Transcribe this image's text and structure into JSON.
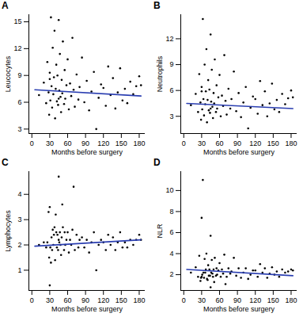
{
  "chart_data": [
    {
      "type": "scatter",
      "title": "A",
      "x_label": "Months before surgery",
      "y_label": "Leucocytes",
      "xlim": [
        -5,
        190
      ],
      "xticks": [
        0,
        30,
        60,
        90,
        120,
        150,
        180
      ],
      "ylim": [
        2.5,
        15.8
      ],
      "yticks": [
        3,
        6,
        9,
        12,
        15
      ],
      "series": [
        {
          "type": "scatter",
          "color": "#000000",
          "x": [
            12,
            20,
            24,
            26,
            28,
            29,
            30,
            31,
            32,
            33,
            34,
            35,
            36,
            37,
            38,
            39,
            40,
            41,
            42,
            43,
            44,
            45,
            46,
            47,
            48,
            49,
            50,
            51,
            52,
            54,
            55,
            56,
            58,
            60,
            62,
            64,
            66,
            68,
            70,
            72,
            75,
            78,
            80,
            84,
            88,
            92,
            96,
            100,
            104,
            108,
            112,
            116,
            120,
            124,
            128,
            132,
            136,
            140,
            144,
            148,
            152,
            156,
            160,
            165,
            170,
            175,
            180,
            183,
            30,
            45
          ],
          "values": [
            6.8,
            8.2,
            5.9,
            10.5,
            7.1,
            4.6,
            9.3,
            6.2,
            15.5,
            7.8,
            5.4,
            12.1,
            6.9,
            8.8,
            14.0,
            4.2,
            7.5,
            10.2,
            6.1,
            9.0,
            5.7,
            15.2,
            7.3,
            11.4,
            6.6,
            4.9,
            8.5,
            7.0,
            12.8,
            5.8,
            9.6,
            6.4,
            7.9,
            10.8,
            5.2,
            8.1,
            6.7,
            13.2,
            7.4,
            5.5,
            9.1,
            6.3,
            7.7,
            11.0,
            6.0,
            8.4,
            5.1,
            7.2,
            9.4,
            3.0,
            6.5,
            8.0,
            7.6,
            5.6,
            10.0,
            6.8,
            8.7,
            5.3,
            7.1,
            9.8,
            6.2,
            7.5,
            5.9,
            8.3,
            6.9,
            7.8,
            8.9,
            7.9,
            8.6,
            6.4
          ]
        },
        {
          "type": "line",
          "color": "#2a3eb1",
          "x": [
            5,
            183
          ],
          "values": [
            7.4,
            6.7
          ]
        }
      ]
    },
    {
      "type": "scatter",
      "title": "B",
      "x_label": "Months before surgery",
      "y_label": "Neutrophils",
      "xlim": [
        -5,
        190
      ],
      "xticks": [
        0,
        30,
        60,
        90,
        120,
        150,
        180
      ],
      "ylim": [
        1,
        14.8
      ],
      "yticks": [
        3,
        6,
        9,
        12
      ],
      "series": [
        {
          "type": "scatter",
          "color": "#000000",
          "x": [
            12,
            20,
            24,
            26,
            28,
            29,
            30,
            31,
            32,
            33,
            34,
            35,
            36,
            37,
            38,
            39,
            40,
            41,
            42,
            43,
            44,
            45,
            46,
            47,
            48,
            49,
            50,
            51,
            52,
            54,
            55,
            56,
            58,
            60,
            62,
            64,
            66,
            68,
            70,
            72,
            75,
            78,
            80,
            84,
            88,
            92,
            96,
            100,
            104,
            108,
            112,
            116,
            120,
            124,
            128,
            132,
            136,
            140,
            144,
            148,
            152,
            156,
            160,
            165,
            170,
            175,
            180,
            183,
            30,
            45
          ],
          "values": [
            4.3,
            5.6,
            3.5,
            7.9,
            4.6,
            2.6,
            6.4,
            3.8,
            14.3,
            5.0,
            3.1,
            9.0,
            4.4,
            5.9,
            10.8,
            2.3,
            4.9,
            7.2,
            3.7,
            6.1,
            3.4,
            12.5,
            4.7,
            8.4,
            4.1,
            2.8,
            5.7,
            4.5,
            9.6,
            3.5,
            6.6,
            3.9,
            5.2,
            7.8,
            3.0,
            5.4,
            4.2,
            10.1,
            4.8,
            3.2,
            6.2,
            3.9,
            5.0,
            8.2,
            3.6,
            5.7,
            2.9,
            4.6,
            6.4,
            1.6,
            4.0,
            5.3,
            5.0,
            3.3,
            7.1,
            4.3,
            5.9,
            3.0,
            4.5,
            6.8,
            3.8,
            4.9,
            3.5,
            5.6,
            4.4,
            5.1,
            6.0,
            5.2,
            5.9,
            3.9
          ]
        },
        {
          "type": "line",
          "color": "#2a3eb1",
          "x": [
            5,
            183
          ],
          "values": [
            4.5,
            3.9
          ]
        }
      ]
    },
    {
      "type": "scatter",
      "title": "C",
      "x_label": "Months before surgery",
      "y_label": "Lymphocytes",
      "xlim": [
        -5,
        190
      ],
      "xticks": [
        0,
        30,
        60,
        90,
        120,
        150,
        180
      ],
      "ylim": [
        0.2,
        4.9
      ],
      "yticks": [
        1,
        2,
        3,
        4
      ],
      "series": [
        {
          "type": "scatter",
          "color": "#000000",
          "x": [
            12,
            20,
            24,
            26,
            28,
            29,
            30,
            31,
            32,
            33,
            34,
            35,
            36,
            37,
            38,
            39,
            40,
            41,
            42,
            43,
            44,
            45,
            46,
            47,
            48,
            49,
            50,
            51,
            52,
            54,
            55,
            56,
            58,
            60,
            62,
            64,
            66,
            68,
            70,
            72,
            75,
            78,
            80,
            84,
            88,
            92,
            96,
            100,
            104,
            108,
            112,
            116,
            120,
            124,
            128,
            132,
            136,
            140,
            144,
            148,
            152,
            156,
            160,
            165,
            170,
            175,
            180,
            183,
            30,
            45
          ],
          "values": [
            2.0,
            2.1,
            1.9,
            2.1,
            3.3,
            1.5,
            3.5,
            1.9,
            1.3,
            2.3,
            1.8,
            2.6,
            2.0,
            2.4,
            2.7,
            1.4,
            3.2,
            2.5,
            1.9,
            2.4,
            1.8,
            2.2,
            2.1,
            2.5,
            2.0,
            1.6,
            2.3,
            3.6,
            2.7,
            1.8,
            2.5,
            2.0,
            2.2,
            2.5,
            1.7,
            2.2,
            2.0,
            2.6,
            4.3,
            1.8,
            2.4,
            1.9,
            2.2,
            2.3,
            1.9,
            2.2,
            1.7,
            2.1,
            2.5,
            1.0,
            2.0,
            2.2,
            2.1,
            1.8,
            2.4,
            2.0,
            2.3,
            1.8,
            2.1,
            2.5,
            1.9,
            2.1,
            1.9,
            2.2,
            2.0,
            2.2,
            2.4,
            2.2,
            0.4,
            4.7
          ]
        },
        {
          "type": "line",
          "color": "#2a3eb1",
          "x": [
            5,
            183
          ],
          "values": [
            1.95,
            2.2
          ]
        }
      ]
    },
    {
      "type": "scatter",
      "title": "D",
      "x_label": "Months before surgery",
      "y_label": "NLR",
      "xlim": [
        -5,
        190
      ],
      "xticks": [
        0,
        30,
        60,
        90,
        120,
        150,
        180
      ],
      "ylim": [
        0.5,
        11.8
      ],
      "yticks": [
        2,
        4,
        6,
        8,
        10
      ],
      "series": [
        {
          "type": "scatter",
          "color": "#000000",
          "x": [
            12,
            20,
            24,
            26,
            28,
            29,
            30,
            31,
            32,
            33,
            34,
            35,
            36,
            37,
            38,
            39,
            40,
            41,
            42,
            43,
            44,
            45,
            46,
            47,
            48,
            49,
            50,
            51,
            52,
            54,
            55,
            56,
            58,
            60,
            62,
            64,
            66,
            68,
            70,
            72,
            75,
            78,
            80,
            84,
            88,
            92,
            96,
            100,
            104,
            108,
            112,
            116,
            120,
            124,
            128,
            132,
            136,
            140,
            144,
            148,
            152,
            156,
            160,
            165,
            170,
            175,
            180,
            183,
            30,
            45
          ],
          "values": [
            2.2,
            2.7,
            1.8,
            3.8,
            1.4,
            1.7,
            1.8,
            2.0,
            11.0,
            2.2,
            1.7,
            3.5,
            2.2,
            2.5,
            4.0,
            1.6,
            1.5,
            2.9,
            1.9,
            2.5,
            1.9,
            5.7,
            2.2,
            3.4,
            2.1,
            1.8,
            2.5,
            1.3,
            3.6,
            1.9,
            2.6,
            2.0,
            2.4,
            3.1,
            1.8,
            2.5,
            2.1,
            3.9,
            1.1,
            1.8,
            2.6,
            2.1,
            2.3,
            3.6,
            1.9,
            2.6,
            1.7,
            2.2,
            2.6,
            1.6,
            2.0,
            2.4,
            2.4,
            1.8,
            3.0,
            2.2,
            2.6,
            1.7,
            2.1,
            2.7,
            2.0,
            2.3,
            1.8,
            2.5,
            2.2,
            2.3,
            2.5,
            2.4,
            7.4,
            0.8
          ]
        },
        {
          "type": "line",
          "color": "#2a3eb1",
          "x": [
            5,
            183
          ],
          "values": [
            2.5,
            1.9
          ]
        }
      ]
    }
  ]
}
